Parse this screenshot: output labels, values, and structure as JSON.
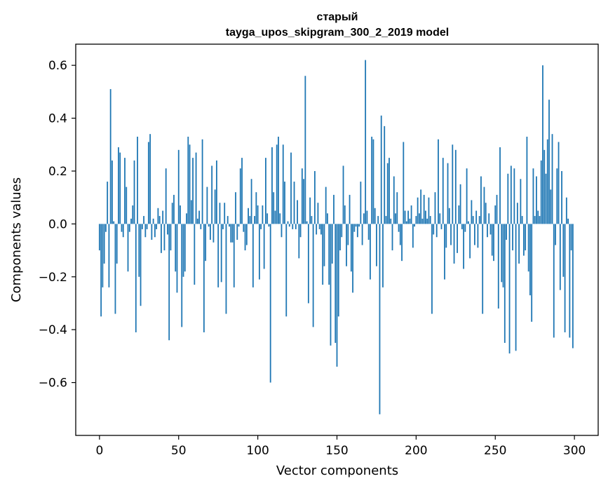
{
  "chart_data": {
    "type": "bar",
    "title": [
      "старый",
      "tayga_upos_skipgram_300_2_2019 model"
    ],
    "xlabel": "Vector components",
    "ylabel": "Components values",
    "xlim": [
      -15,
      315
    ],
    "ylim": [
      -0.8,
      0.68
    ],
    "xticks": [
      0,
      50,
      100,
      150,
      200,
      250,
      300
    ],
    "xtick_labels": [
      "0",
      "50",
      "100",
      "150",
      "200",
      "250",
      "300"
    ],
    "yticks": [
      -0.6,
      -0.4,
      -0.2,
      0.0,
      0.2,
      0.4,
      0.6
    ],
    "ytick_labels": [
      "−0.6",
      "−0.4",
      "−0.2",
      "0.0",
      "0.2",
      "0.4",
      "0.6"
    ],
    "grid": false,
    "bar_color": "#1f77b4",
    "x": "0..299",
    "values": [
      -0.1,
      -0.35,
      -0.24,
      -0.15,
      -0.03,
      0.16,
      -0.24,
      0.51,
      0.24,
      0.01,
      -0.34,
      -0.15,
      0.29,
      0.27,
      -0.03,
      -0.05,
      0.25,
      0.14,
      -0.18,
      -0.03,
      0.02,
      0.07,
      0.24,
      -0.41,
      0.33,
      -0.2,
      -0.31,
      -0.02,
      0.03,
      -0.05,
      -0.02,
      0.31,
      0.34,
      -0.06,
      0.02,
      -0.05,
      -0.02,
      0.06,
      0.03,
      -0.11,
      0.05,
      -0.1,
      0.21,
      -0.04,
      -0.44,
      -0.1,
      0.08,
      0.11,
      -0.18,
      -0.26,
      0.28,
      0.07,
      -0.39,
      -0.2,
      -0.18,
      0.04,
      0.33,
      0.3,
      0.09,
      0.25,
      -0.23,
      0.27,
      0.02,
      0.05,
      -0.02,
      0.32,
      -0.41,
      -0.14,
      0.14,
      -0.01,
      -0.06,
      0.22,
      -0.07,
      0.13,
      0.24,
      -0.24,
      0.08,
      -0.22,
      -0.02,
      0.08,
      -0.34,
      0.03,
      -0.01,
      -0.07,
      -0.07,
      -0.24,
      0.12,
      -0.06,
      -0.01,
      0.21,
      0.25,
      -0.03,
      -0.1,
      -0.08,
      0.06,
      0.03,
      0.17,
      -0.24,
      0.03,
      0.12,
      0.07,
      -0.21,
      -0.02,
      0.07,
      -0.17,
      0.25,
      0.04,
      -0.01,
      -0.6,
      0.29,
      0.12,
      0.05,
      0.3,
      0.33,
      0.04,
      -0.05,
      0.3,
      0.16,
      -0.35,
      0.01,
      -0.01,
      0.27,
      -0.02,
      0.16,
      -0.02,
      0.09,
      -0.13,
      -0.05,
      0.21,
      0.17,
      0.56,
      0.01,
      -0.3,
      0.1,
      0.03,
      -0.39,
      0.2,
      -0.04,
      0.08,
      -0.02,
      -0.04,
      -0.23,
      -0.16,
      0.14,
      0.04,
      -0.23,
      -0.46,
      -0.15,
      0.11,
      -0.45,
      -0.54,
      -0.35,
      -0.1,
      -0.05,
      0.22,
      0.07,
      -0.16,
      -0.08,
      0.11,
      -0.18,
      -0.26,
      -0.03,
      -0.01,
      -0.05,
      -0.01,
      0.16,
      -0.08,
      0.04,
      0.62,
      0.05,
      -0.06,
      -0.21,
      0.33,
      0.32,
      0.06,
      -0.16,
      0.03,
      -0.72,
      0.41,
      -0.24,
      0.37,
      0.03,
      0.23,
      0.25,
      0.02,
      -0.1,
      0.18,
      0.04,
      0.12,
      -0.03,
      -0.08,
      -0.14,
      0.31,
      0.05,
      0.01,
      0.05,
      0.02,
      0.07,
      -0.09,
      -0.01,
      0.03,
      0.1,
      0.04,
      0.13,
      0.02,
      0.11,
      0.05,
      0.02,
      0.1,
      0.03,
      -0.34,
      -0.04,
      0.12,
      -0.05,
      0.32,
      0.04,
      -0.02,
      0.25,
      -0.21,
      -0.09,
      0.23,
      0.06,
      -0.08,
      0.3,
      -0.15,
      0.28,
      -0.11,
      0.07,
      0.15,
      -0.02,
      -0.17,
      -0.03,
      0.21,
      0.01,
      -0.13,
      0.09,
      0.03,
      -0.08,
      0.05,
      -0.09,
      0.03,
      0.18,
      -0.34,
      0.14,
      0.08,
      -0.05,
      0.04,
      -0.04,
      -0.12,
      -0.14,
      0.07,
      0.11,
      -0.32,
      0.29,
      -0.22,
      -0.24,
      -0.45,
      -0.06,
      0.19,
      -0.49,
      0.22,
      -0.1,
      0.21,
      -0.48,
      0.08,
      -0.15,
      0.17,
      0.03,
      -0.12,
      -0.1,
      0.33,
      -0.18,
      -0.27,
      -0.37,
      0.21,
      0.03,
      0.18,
      0.05,
      0.03,
      0.24,
      0.6,
      0.28,
      0.19,
      0.32,
      0.47,
      0.13,
      0.34,
      -0.43,
      -0.08,
      0.21,
      0.31,
      -0.25,
      0.2,
      -0.2,
      -0.41,
      0.1,
      0.02,
      -0.43,
      -0.1,
      -0.47
    ]
  }
}
